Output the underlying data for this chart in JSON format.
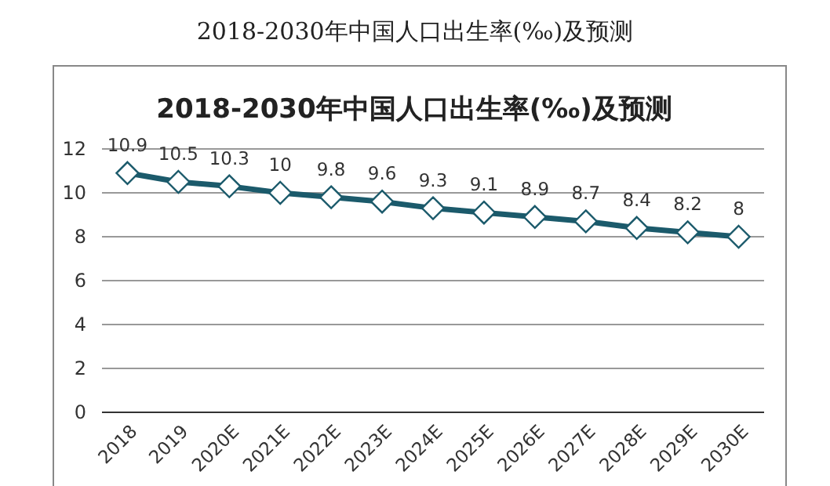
{
  "chart_data": {
    "type": "line",
    "title": "2018-2030年中国人口出生率(‰)及预测",
    "annotations": [
      "2018-2030年中国人口出生率(‰)及预测"
    ],
    "categories": [
      "2018",
      "2019",
      "2020E",
      "2021E",
      "2022E",
      "2023E",
      "2024E",
      "2025E",
      "2026E",
      "2027E",
      "2028E",
      "2029E",
      "2030E"
    ],
    "series": [
      {
        "color": "#1b5a6b",
        "values": [
          10.9,
          10.5,
          10.3,
          10,
          9.8,
          9.6,
          9.3,
          9.1,
          8.9,
          8.7,
          8.4,
          8.2,
          8
        ]
      }
    ],
    "ylim": [
      0,
      12
    ],
    "yticks": [
      0,
      2,
      4,
      6,
      8,
      10,
      12
    ],
    "grid": "y",
    "marker": "diamond",
    "line_style": "solid",
    "data_labels": true
  }
}
